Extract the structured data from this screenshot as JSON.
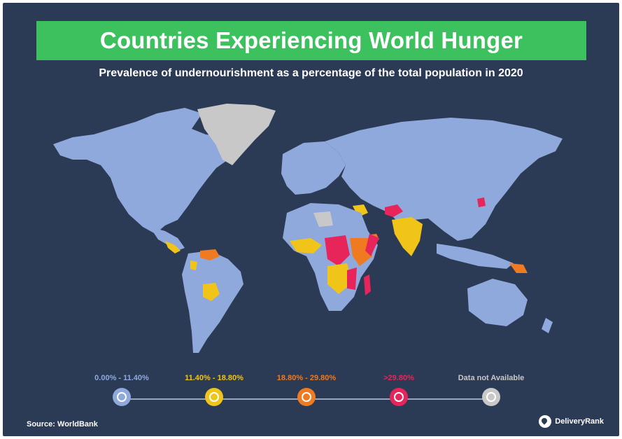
{
  "title": "Countries Experiencing World Hunger",
  "subtitle": "Prevalence of undernourishment as a percentage of the total population in 2020",
  "colors": {
    "background": "#2b3a55",
    "title_bar": "#3cc15e",
    "ocean": "#2b3a55",
    "low": "#8fa9dc",
    "mid": "#f0c419",
    "high": "#f07a1f",
    "severe": "#e8255a",
    "na": "#c8c8c8"
  },
  "legend": {
    "items": [
      {
        "label": "0.00% - 11.40%",
        "color": "#8fa9dc"
      },
      {
        "label": "11.40% - 18.80%",
        "color": "#f0c419"
      },
      {
        "label": "18.80% - 29.80%",
        "color": "#f07a1f"
      },
      {
        "label": ">29.80%",
        "color": "#e8255a"
      },
      {
        "label": "Data not Available",
        "color": "#c8c8c8"
      }
    ]
  },
  "source": "Source: WorldBank",
  "brand": "DeliveryRank"
}
